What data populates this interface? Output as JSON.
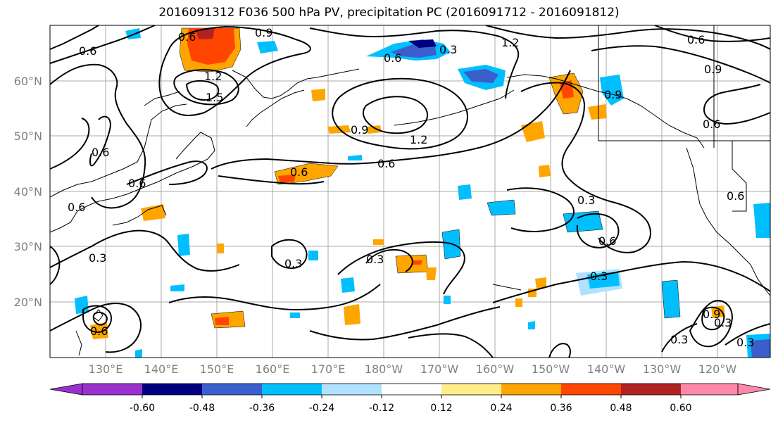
{
  "title": "2016091312 F036 500 hPa PV, precipitation PC (2016091712 - 2016091812)",
  "lat_labels": [
    "60°N",
    "50°N",
    "40°N",
    "30°N",
    "20°N"
  ],
  "lon_labels": [
    "130°E",
    "140°E",
    "150°E",
    "160°E",
    "170°E",
    "180°W",
    "170°W",
    "160°W",
    "150°W",
    "140°W",
    "130°W",
    "120°W"
  ],
  "contour_labels": [
    "0.6",
    "0.9",
    "1.2",
    "1.5",
    "0.3"
  ],
  "colorbar": {
    "ticks": [
      "-0.60",
      "-0.48",
      "-0.36",
      "-0.24",
      "-0.12",
      "0.12",
      "0.24",
      "0.36",
      "0.48",
      "0.60"
    ],
    "colors": [
      "#9932CC",
      "#000080",
      "#3A5FCD",
      "#00BFFF",
      "#B0E2FF",
      "#FFFFFF",
      "#FFEC8B",
      "#FFA500",
      "#FF4500",
      "#B22222",
      "#FF88AA"
    ]
  }
}
